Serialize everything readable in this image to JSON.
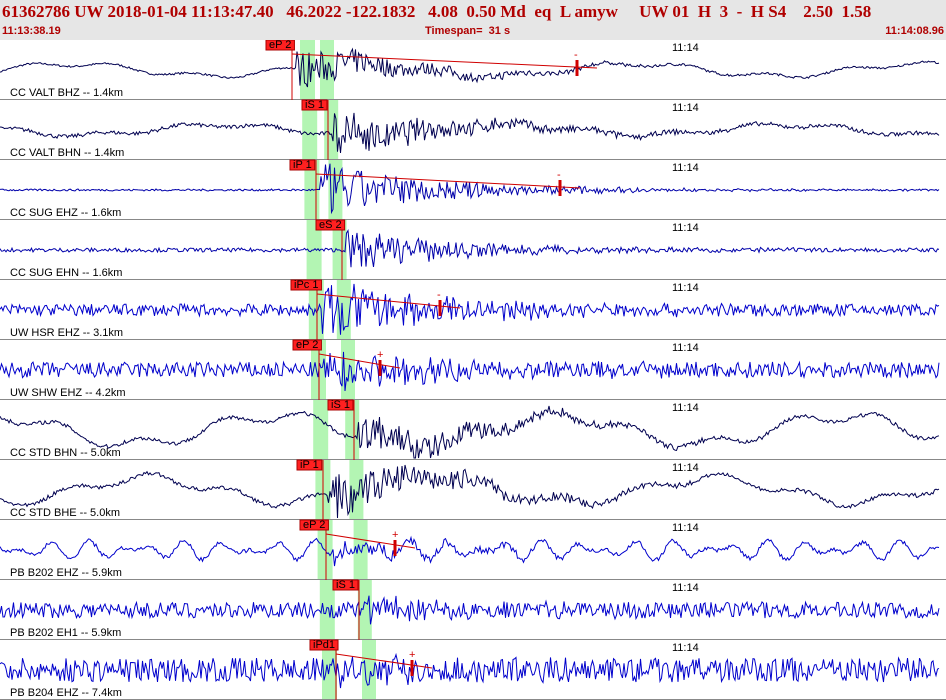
{
  "header": {
    "title": "61362786 UW 2018-01-04 11:13:47.40   46.2022 -122.1832   4.08  0.50 Md  eq  L amyw     UW 01  H  3  -  H S4    2.50  1.58",
    "start_time": "11:13:38.19",
    "timespan": "Timespan=  31 s",
    "end_time": "11:14:08.96"
  },
  "traces": [
    {
      "label": "CC VALT BHZ -- 1.4km",
      "time_mark": "11:14",
      "pick": "eP 2",
      "coda": "-"
    },
    {
      "label": "CC VALT BHN -- 1.4km",
      "time_mark": "11:14",
      "pick": "iS 1"
    },
    {
      "label": "CC SUG EHZ -- 1.6km",
      "time_mark": "11:14",
      "pick": "iP 1",
      "coda": "-"
    },
    {
      "label": "CC SUG EHN -- 1.6km",
      "time_mark": "11:14",
      "pick": "eS 2"
    },
    {
      "label": "UW HSR EHZ -- 3.1km",
      "time_mark": "11:14",
      "pick": "iPc 1",
      "coda": "-"
    },
    {
      "label": "UW SHW EHZ -- 4.2km",
      "time_mark": "11:14",
      "pick": "eP 2",
      "coda": "+"
    },
    {
      "label": "CC STD BHN -- 5.0km",
      "time_mark": "11:14",
      "pick": "iS 1"
    },
    {
      "label": "CC STD BHE -- 5.0km",
      "time_mark": "11:14",
      "pick": "iP 1"
    },
    {
      "label": "PB B202 EHZ -- 5.9km",
      "time_mark": "11:14",
      "pick": "eP 2",
      "coda": "+"
    },
    {
      "label": "PB B202 EH1 -- 5.9km",
      "time_mark": "11:14",
      "pick": "iS 1"
    },
    {
      "label": "PB B204 EHZ -- 7.4km",
      "time_mark": "11:14",
      "pick": "iPd1",
      "coda": "+"
    }
  ]
}
